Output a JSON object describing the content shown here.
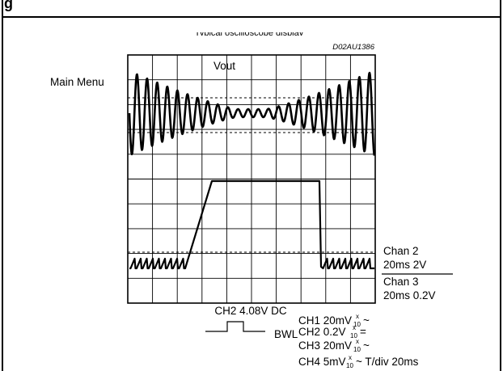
{
  "header": {
    "section_heading": "g",
    "partial_caption": "Typical oscilloscope display",
    "figure_id": "D02AU1386"
  },
  "scope": {
    "side_label": "Main Menu",
    "trace_label": "Vout",
    "channel_settings": [
      {
        "name": "Chan 2",
        "setting": "20ms 2V"
      },
      {
        "name": "Chan 3",
        "setting": "20ms 0.2V"
      }
    ],
    "trigger_readout": "CH2 4.08V DC",
    "bwl_label": "BWL",
    "channel_list": [
      {
        "main": "CH1 20mV",
        "sup": "x",
        "sub": "10",
        "tail": "~"
      },
      {
        "main": "CH2 0.2V",
        "sup": "x",
        "sub": "10",
        "tail": "="
      },
      {
        "main": "CH3 20mV",
        "sup": "x",
        "sub": "10",
        "tail": "~"
      },
      {
        "main": "CH4 5mV",
        "sup": "x",
        "sub": "10",
        "tail": "~ T/div 20ms"
      }
    ]
  }
}
